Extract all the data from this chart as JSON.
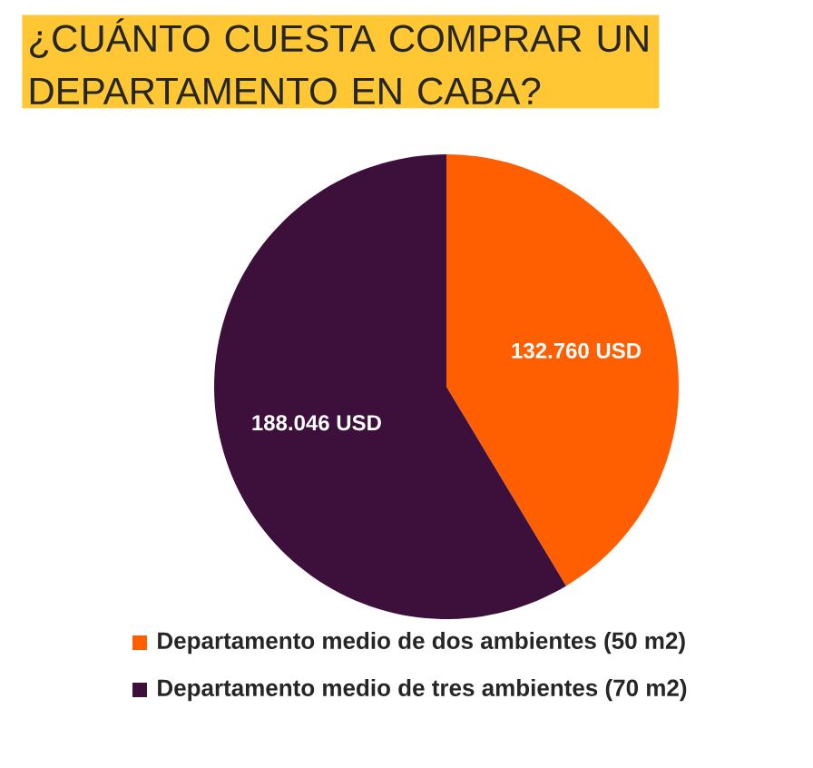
{
  "chart_data": {
    "type": "pie",
    "title": "¿CUÁNTO CUESTA COMPRAR UN DEPARTAMENTO EN CABA?",
    "categories": [
      "Departamento medio de dos ambientes (50 m2)",
      "Departamento medio de tres ambientes (70 m2)"
    ],
    "values": [
      132760,
      188046
    ],
    "value_labels": [
      "132.760 USD",
      "188.046 USD"
    ],
    "colors": [
      "#ff5f00",
      "#3d0f3b"
    ],
    "legend": "bottom"
  }
}
